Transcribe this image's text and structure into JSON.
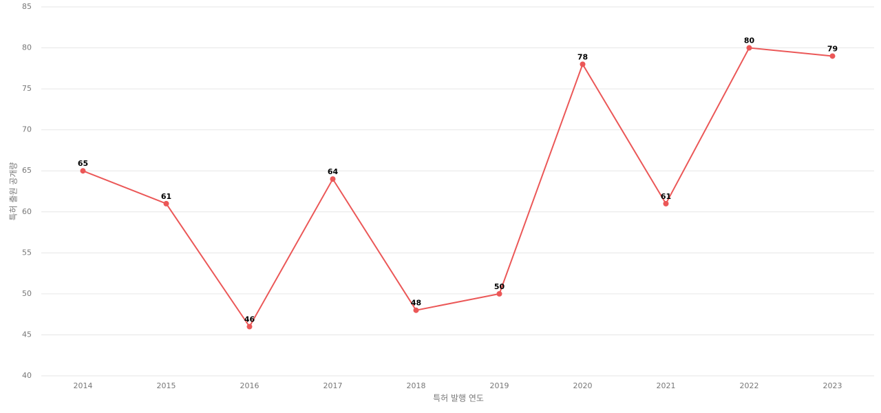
{
  "chart_data": {
    "type": "line",
    "x_label": "특허 발행 연도",
    "y_label": "특허 출원 공개량",
    "categories": [
      "2014",
      "2015",
      "2016",
      "2017",
      "2018",
      "2019",
      "2020",
      "2021",
      "2022",
      "2023"
    ],
    "values": [
      65,
      61,
      46,
      64,
      48,
      50,
      78,
      61,
      80,
      79
    ],
    "color": "#eb5757",
    "ylim": [
      40,
      85
    ],
    "yticks": [
      40,
      45,
      50,
      55,
      60,
      65,
      70,
      75,
      80,
      85
    ],
    "grid": true
  }
}
